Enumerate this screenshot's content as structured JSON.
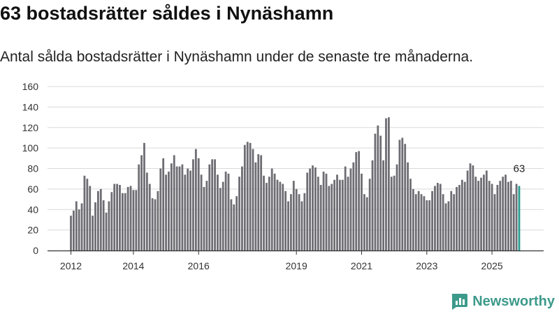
{
  "chart_data": {
    "type": "bar",
    "title": "63 bostadsrätter såldes i Nynäshamn",
    "subtitle": "Antal sålda bostadsrätter i Nynäshamn under de senaste tre månaderna.",
    "xlabel": "",
    "ylabel": "",
    "ylim": [
      0,
      160
    ],
    "yticks": [
      0,
      20,
      40,
      60,
      80,
      100,
      120,
      140,
      160
    ],
    "xticks": [
      "2012",
      "2014",
      "2016",
      "2019",
      "2021",
      "2023",
      "2025"
    ],
    "grid": true,
    "highlight_label": "63",
    "colors": {
      "bar": "#6e6d73",
      "highlight": "#2a9d8f",
      "grid": "#d9d9d9",
      "axis": "#333333"
    },
    "values": [
      34,
      39,
      48,
      40,
      46,
      73,
      70,
      63,
      34,
      47,
      58,
      60,
      49,
      37,
      48,
      57,
      65,
      65,
      64,
      56,
      56,
      62,
      63,
      59,
      59,
      84,
      93,
      105,
      76,
      65,
      51,
      50,
      58,
      80,
      90,
      74,
      77,
      85,
      93,
      82,
      82,
      84,
      74,
      80,
      78,
      89,
      99,
      90,
      74,
      62,
      68,
      84,
      89,
      89,
      74,
      61,
      67,
      77,
      75,
      50,
      45,
      53,
      72,
      82,
      103,
      106,
      105,
      99,
      86,
      94,
      93,
      73,
      66,
      72,
      80,
      75,
      69,
      67,
      65,
      58,
      48,
      55,
      68,
      60,
      55,
      48,
      56,
      76,
      80,
      83,
      81,
      72,
      64,
      77,
      75,
      63,
      65,
      69,
      74,
      69,
      69,
      82,
      72,
      80,
      86,
      96,
      97,
      75,
      55,
      52,
      70,
      88,
      114,
      122,
      112,
      88,
      129,
      130,
      72,
      73,
      84,
      108,
      110,
      104,
      86,
      70,
      60,
      55,
      58,
      55,
      53,
      49,
      49,
      58,
      63,
      66,
      65,
      55,
      46,
      48,
      58,
      55,
      62,
      64,
      69,
      67,
      78,
      85,
      83,
      72,
      68,
      71,
      74,
      78,
      68,
      65,
      55,
      64,
      68,
      72,
      74,
      67,
      68,
      55,
      65,
      63
    ]
  },
  "brand": {
    "name": "Newsworthy",
    "icon": "bar-chart-logo-icon"
  }
}
